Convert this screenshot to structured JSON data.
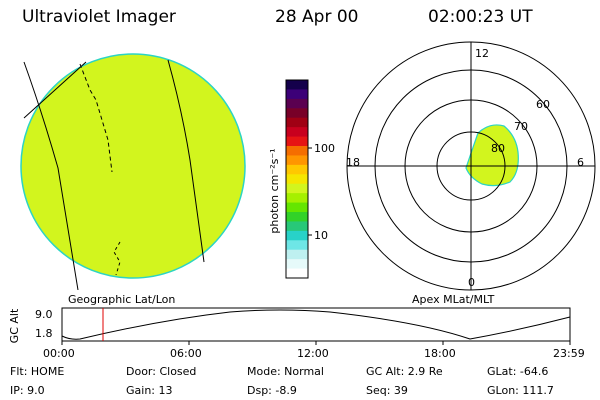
{
  "header": {
    "instrument": "Ultraviolet Imager",
    "date": "28 Apr 00",
    "time": "02:00:23 UT"
  },
  "geographic_panel": {
    "caption": "Geographic Lat/Lon",
    "fill_color": "#d2f51e"
  },
  "colorbar": {
    "label": "photon cm⁻²s⁻¹",
    "ticks": [
      "100",
      "10"
    ],
    "colors": [
      "#14004b",
      "#3c0078",
      "#5a0050",
      "#780028",
      "#a00014",
      "#c8001e",
      "#e61414",
      "#f56e00",
      "#ff9600",
      "#ffc800",
      "#f5e600",
      "#d2f51e",
      "#a5f000",
      "#64e600",
      "#32d228",
      "#28c878",
      "#28d2c8",
      "#6ee6e6",
      "#bef0f0",
      "#e6fafa",
      "#ffffff"
    ]
  },
  "apex_panel": {
    "caption": "Apex MLat/MLT",
    "mlt_labels": {
      "top": "12",
      "left": "18",
      "right": "6",
      "bottom": "0"
    },
    "mlat_labels": [
      "60",
      "70",
      "80"
    ]
  },
  "altitude_plot": {
    "ylabel": "GC Alt",
    "yticks": [
      "9.0",
      "1.8"
    ],
    "xticks": [
      "00:00",
      "06:00",
      "12:00",
      "18:00",
      "23:59"
    ],
    "cursor_color": "#e00000"
  },
  "status": {
    "flt": "Flt: HOME",
    "ip": "IP:  9.0",
    "door": "Door: Closed",
    "gain": "Gain: 13",
    "mode": "Mode: Normal",
    "dsp": "Dsp:   -8.9",
    "gc_alt": "GC Alt: 2.9 Re",
    "seq": "Seq: 39",
    "glat": "GLat: -64.6",
    "glon": "GLon: 111.7"
  }
}
